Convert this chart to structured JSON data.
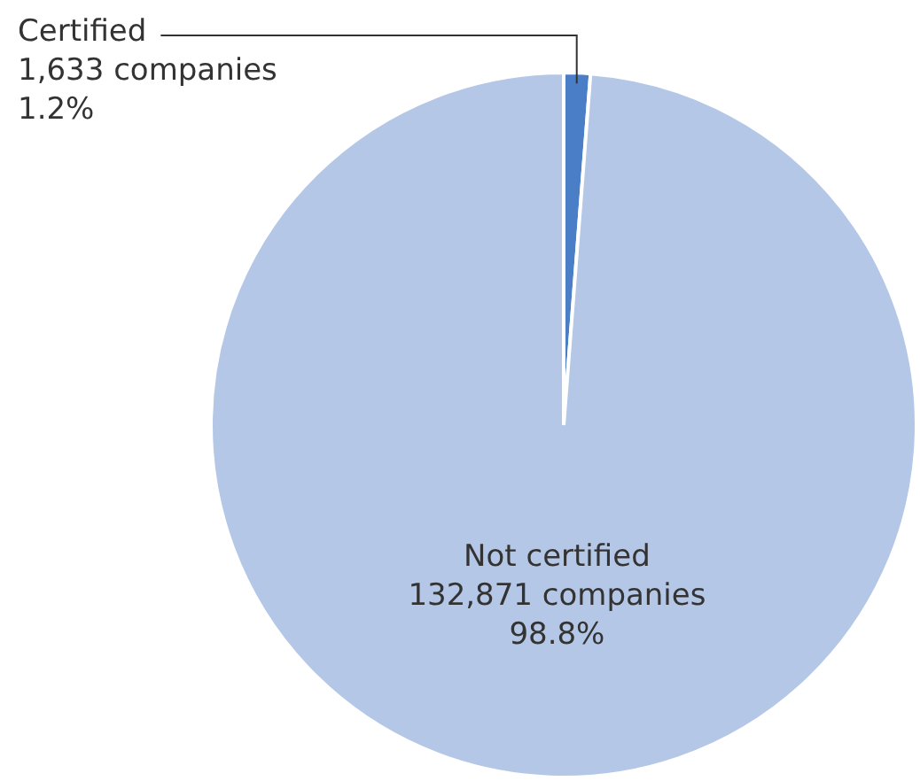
{
  "chart_data": {
    "type": "pie",
    "categories": [
      "Certified",
      "Not certified"
    ],
    "values": [
      1633,
      132871
    ],
    "colors": [
      "#4a7ec6",
      "#b4c7e7"
    ],
    "value_labels": [
      "1,633 companies\n1.2%",
      "132,871 companies\n98.8%"
    ]
  }
}
